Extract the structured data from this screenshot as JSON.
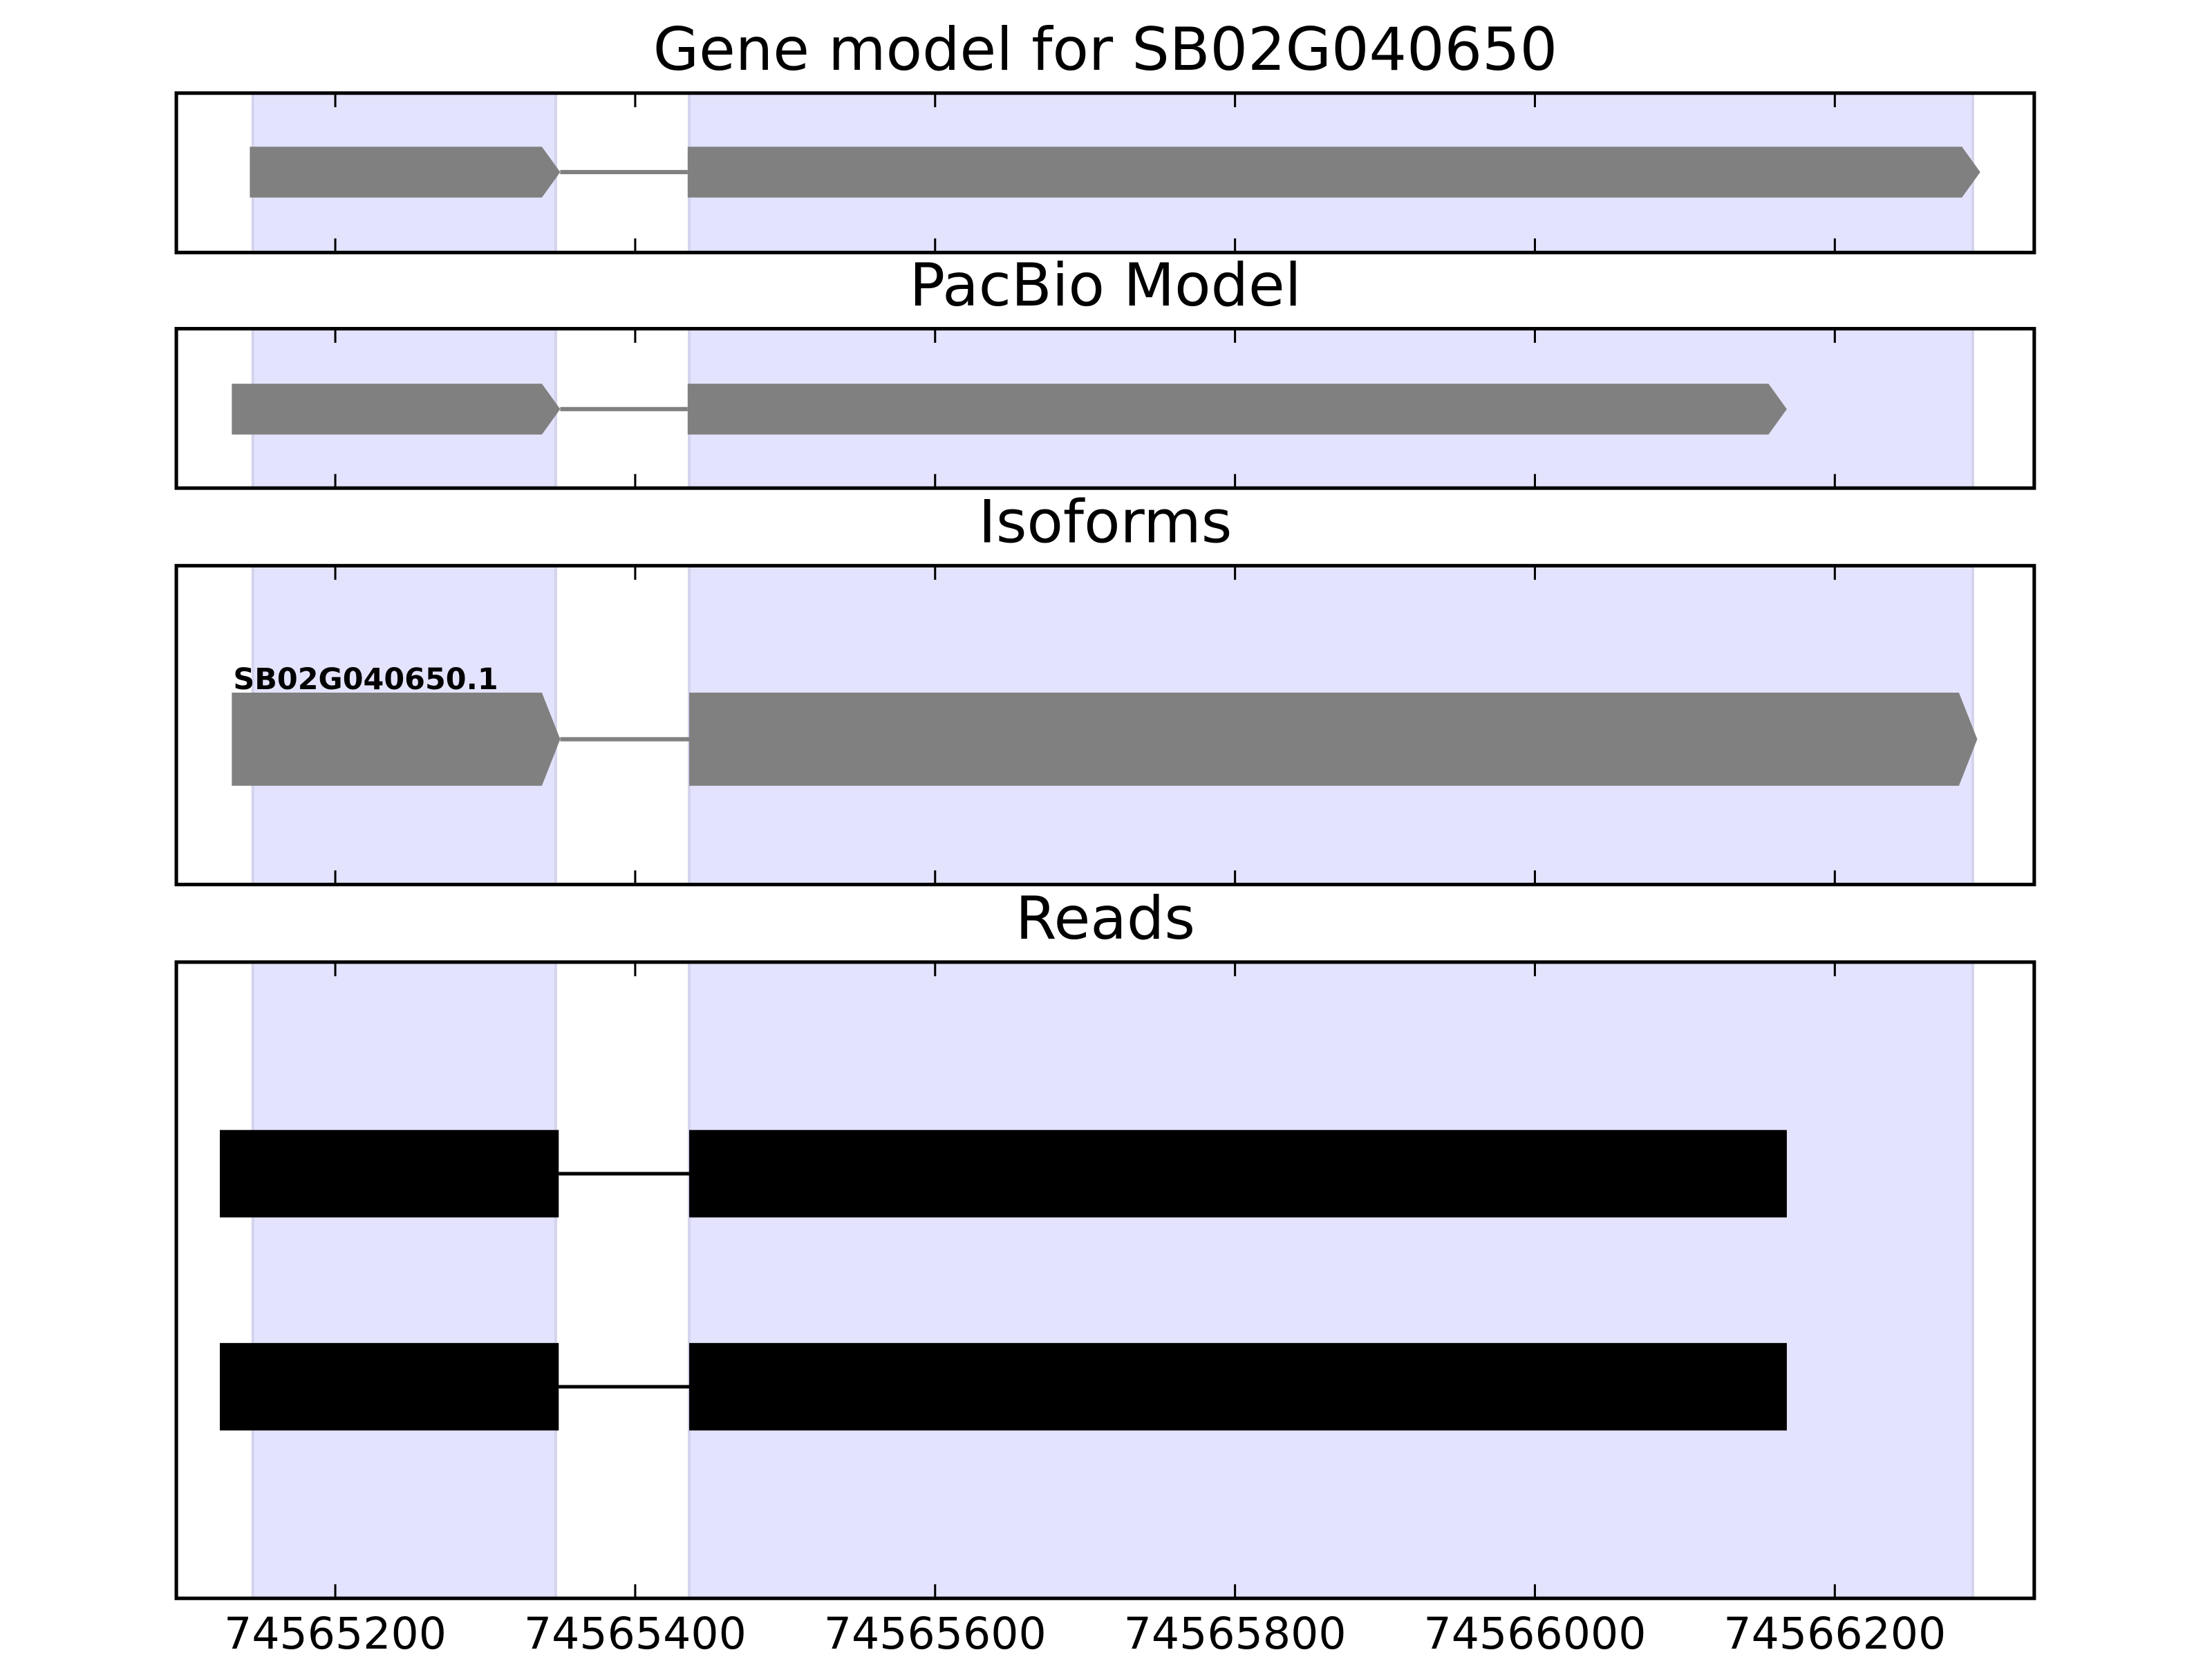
{
  "chart_data": [
    {
      "type": "gene-track",
      "title": "Gene model for SB02G040650",
      "xlim": [
        74565094,
        74566333
      ],
      "xticks": [
        74565200,
        74565400,
        74565600,
        74565800,
        74566000,
        74566200
      ],
      "highlights": [
        [
          74565145,
          74565347
        ],
        [
          74565436,
          74566292
        ]
      ],
      "highlight_color": "#e3e3fd",
      "shape": "arrow",
      "color": "#808080",
      "tracks": [
        {
          "exons": [
            [
              74565143,
              74565350
            ],
            [
              74565435,
              74566297
            ]
          ]
        }
      ]
    },
    {
      "type": "gene-track",
      "title": "PacBio Model",
      "xlim": [
        74565094,
        74566333
      ],
      "xticks": [
        74565200,
        74565400,
        74565600,
        74565800,
        74566000,
        74566200
      ],
      "highlights": [
        [
          74565145,
          74565347
        ],
        [
          74565436,
          74566292
        ]
      ],
      "highlight_color": "#e3e3fd",
      "shape": "arrow",
      "color": "#808080",
      "tracks": [
        {
          "exons": [
            [
              74565131,
              74565350
            ],
            [
              74565435,
              74566168
            ]
          ]
        }
      ]
    },
    {
      "type": "gene-track",
      "title": "Isoforms",
      "xlim": [
        74565094,
        74566333
      ],
      "xticks": [
        74565200,
        74565400,
        74565600,
        74565800,
        74566000,
        74566200
      ],
      "highlights": [
        [
          74565145,
          74565347
        ],
        [
          74565436,
          74566292
        ]
      ],
      "highlight_color": "#e3e3fd",
      "shape": "arrow",
      "color": "#808080",
      "tracks": [
        {
          "label": "SB02G040650.1",
          "exons": [
            [
              74565131,
              74565350
            ],
            [
              74565436,
              74566295
            ]
          ]
        }
      ]
    },
    {
      "type": "gene-track",
      "title": "Reads",
      "xlim": [
        74565094,
        74566333
      ],
      "xticks": [
        74565200,
        74565400,
        74565600,
        74565800,
        74566000,
        74566200
      ],
      "xtick_labels": true,
      "highlights": [
        [
          74565145,
          74565347
        ],
        [
          74565436,
          74566292
        ]
      ],
      "highlight_color": "#e3e3fd",
      "shape": "box",
      "color": "#000000",
      "tracks": [
        {
          "exons": [
            [
              74565123,
              74565349
            ],
            [
              74565436,
              74566168
            ]
          ]
        },
        {
          "exons": [
            [
              74565123,
              74565349
            ],
            [
              74565436,
              74566168
            ]
          ]
        }
      ]
    }
  ]
}
